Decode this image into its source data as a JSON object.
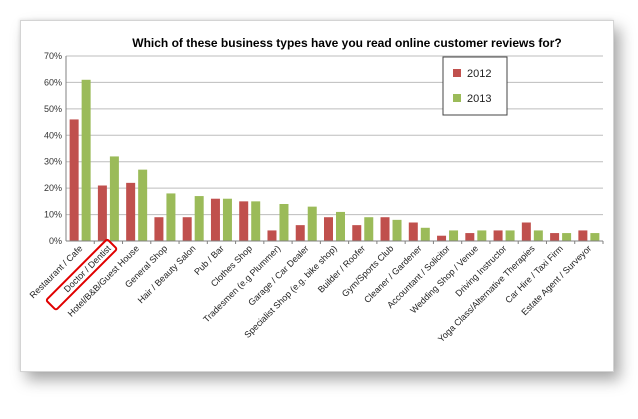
{
  "chart_data": {
    "type": "bar",
    "title": "Which of these business types have you read online customer reviews for?",
    "xlabel": "",
    "ylabel": "",
    "ylim": [
      0,
      70
    ],
    "yticks": [
      "0%",
      "10%",
      "20%",
      "30%",
      "40%",
      "50%",
      "60%",
      "70%"
    ],
    "grid": true,
    "legend_position": "top-right",
    "highlighted_category": "Doctor / Dentist",
    "categories": [
      "Restaurant / Cafe",
      "Doctor / Dentist",
      "Hotel/B&B/Guest House",
      "General Shop",
      "Hair / Beauty Salon",
      "Pub / Bar",
      "Clothes Shop",
      "Tradesmen (e.g Plummer)",
      "Garage / Car Dealer",
      "Specialist Shop (e.g. bike shop)",
      "Builder / Roofer",
      "Gym/Sports Club",
      "Cleaner / Gardener",
      "Accountant / Solicitor",
      "Wedding Shop / Venue",
      "Driving Instructor",
      "Yoga Class/Alternative Therapies",
      "Car Hire / Taxi Firm",
      "Estate Agent / Surveyor"
    ],
    "series": [
      {
        "name": "2012",
        "color": "#c0504d",
        "values": [
          46,
          21,
          22,
          9,
          9,
          16,
          15,
          4,
          6,
          9,
          6,
          9,
          7,
          2,
          3,
          4,
          7,
          3,
          4
        ]
      },
      {
        "name": "2013",
        "color": "#9bbb59",
        "values": [
          61,
          32,
          27,
          18,
          17,
          16,
          15,
          14,
          13,
          11,
          9,
          8,
          5,
          4,
          4,
          4,
          4,
          3,
          3
        ]
      }
    ]
  }
}
